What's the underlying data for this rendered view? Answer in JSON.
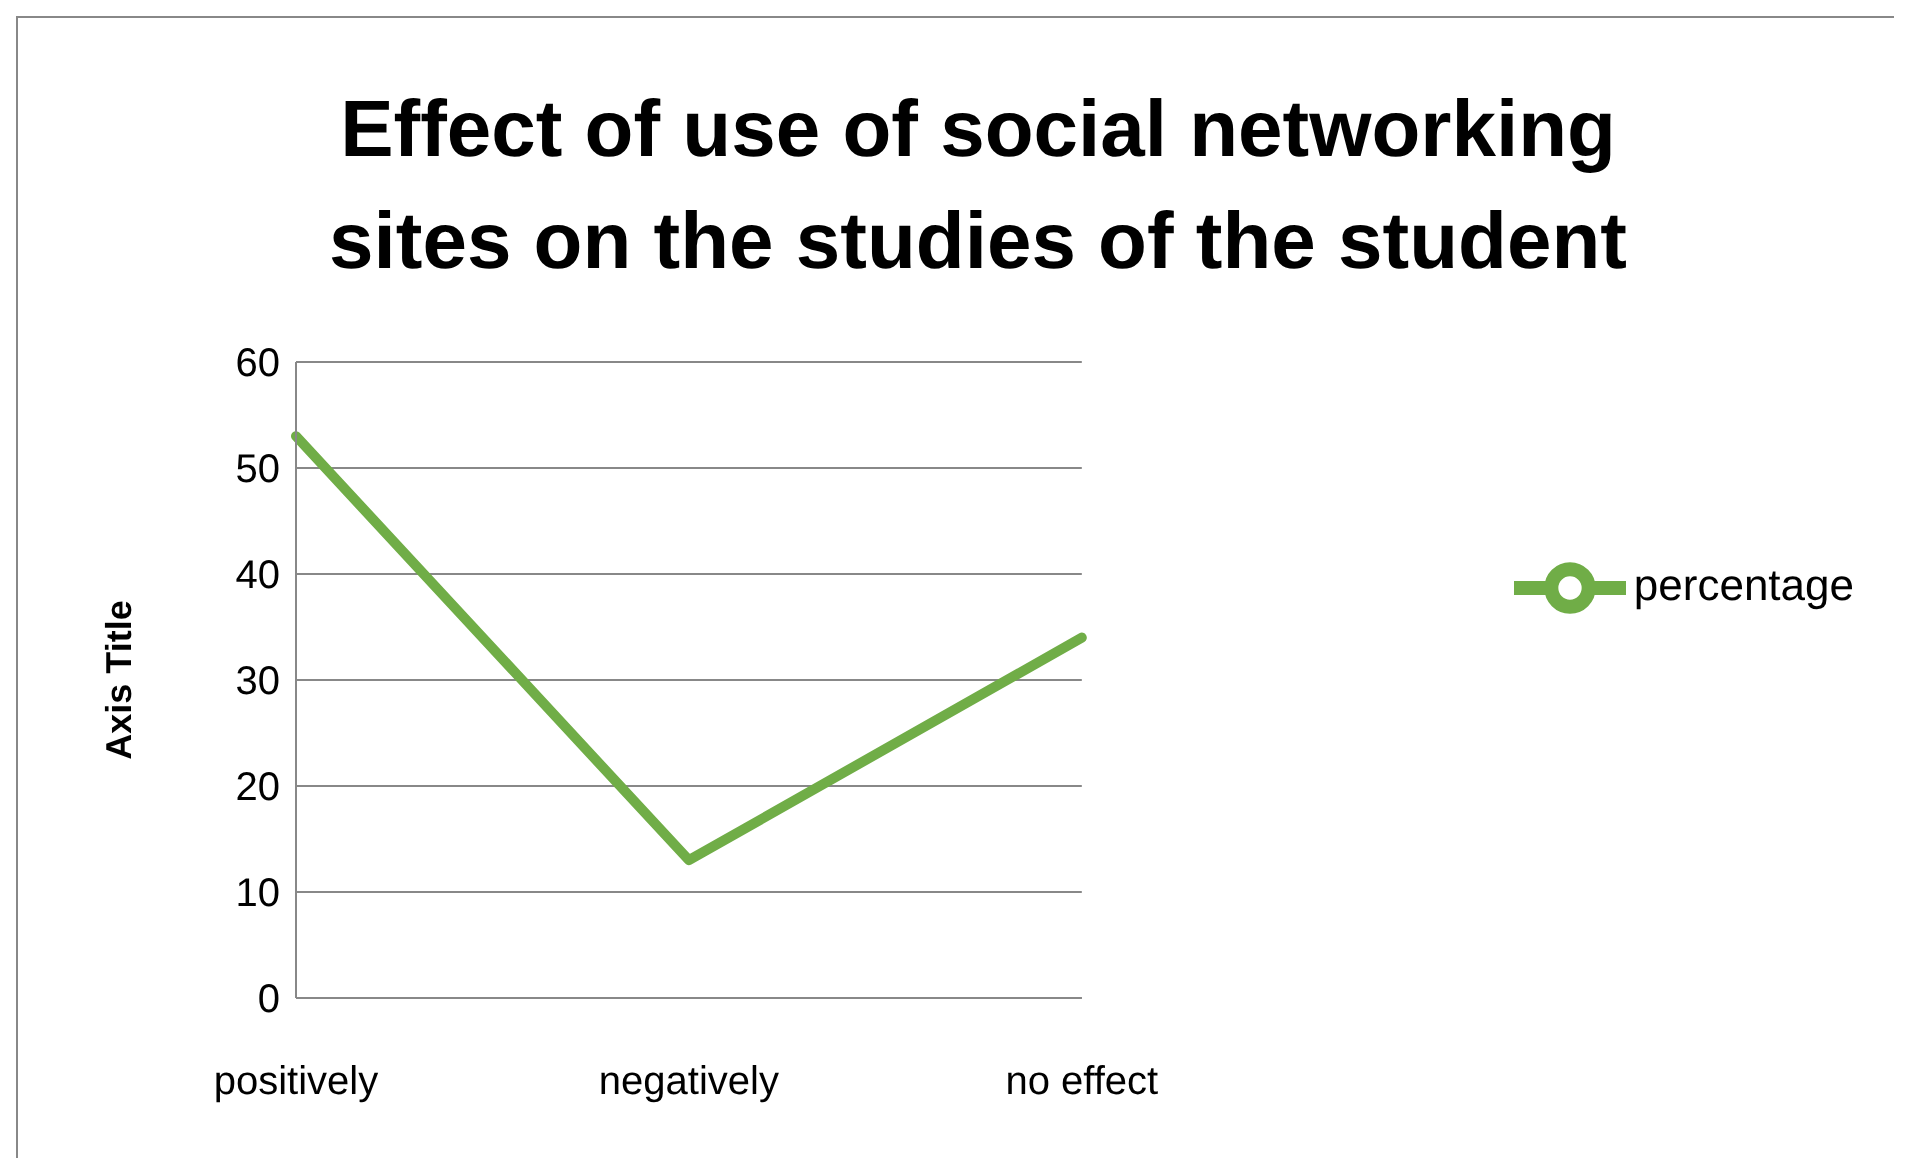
{
  "chart_data": {
    "type": "line",
    "title": "Effect of use of social networking sites on the studies of the student",
    "ylabel": "Axis Title",
    "categories": [
      "positively",
      "negatively",
      "no effect"
    ],
    "series": [
      {
        "name": "percentage",
        "color": "#70ad47",
        "values": [
          53,
          13,
          34
        ]
      }
    ],
    "ylim": [
      0,
      60
    ],
    "yticks": [
      0,
      10,
      20,
      30,
      40,
      50,
      60
    ],
    "grid": "y",
    "legend": "right",
    "marker": "none",
    "line_style": "solid"
  }
}
